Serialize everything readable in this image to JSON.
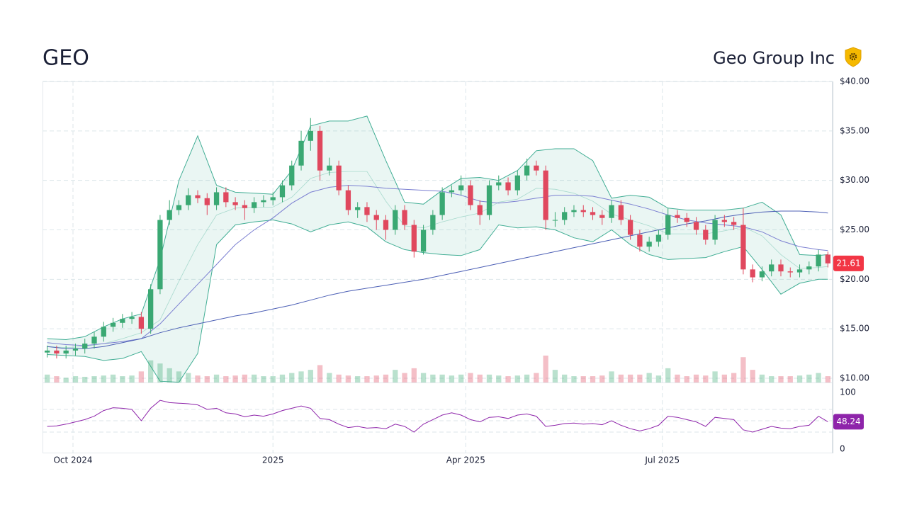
{
  "header": {
    "symbol": "GEO",
    "name": "Geo Group Inc"
  },
  "chart_data": [
    {
      "type": "candlestick",
      "x": [
        0,
        1,
        2,
        3,
        4,
        5,
        6,
        7,
        8,
        9,
        10,
        11,
        12,
        13,
        14,
        15,
        16,
        17,
        18,
        19,
        20,
        21,
        22,
        23,
        24,
        25,
        26,
        27,
        28,
        29,
        30,
        31,
        32,
        33,
        34,
        35,
        36,
        37,
        38,
        39,
        40,
        41,
        42,
        43,
        44,
        45,
        46,
        47,
        48,
        49,
        50,
        51,
        52,
        53,
        54,
        55,
        56,
        57,
        58,
        59,
        60,
        61,
        62,
        63,
        64,
        65,
        66,
        67,
        68,
        69,
        70,
        71,
        72,
        73,
        74,
        75,
        76,
        77,
        78,
        79,
        80,
        81,
        82,
        83
      ],
      "open": [
        12.6,
        12.8,
        12.5,
        12.8,
        13.0,
        13.5,
        14.2,
        15.2,
        15.6,
        16.0,
        16.2,
        15.0,
        19.0,
        26.0,
        27.0,
        27.5,
        28.5,
        28.2,
        27.5,
        28.8,
        27.8,
        27.5,
        27.2,
        27.8,
        28.0,
        28.3,
        29.5,
        31.5,
        34.0,
        35.0,
        31.0,
        31.5,
        29.0,
        27.0,
        27.3,
        26.5,
        26.0,
        25.0,
        27.0,
        25.5,
        22.8,
        25.0,
        26.5,
        28.8,
        29.0,
        29.5,
        27.5,
        26.5,
        29.5,
        29.8,
        29.0,
        30.5,
        31.5,
        31.0,
        26.0,
        26.0,
        26.8,
        27.0,
        26.8,
        26.5,
        26.2,
        27.5,
        26.0,
        24.5,
        23.3,
        23.8,
        24.5,
        26.5,
        26.2,
        25.8,
        25.0,
        24.0,
        26.0,
        25.8,
        25.5,
        21.0,
        20.2,
        20.8,
        21.5,
        20.8,
        20.7,
        21.0,
        21.3,
        22.5
      ],
      "high": [
        13.3,
        13.3,
        13.3,
        13.5,
        14.0,
        14.7,
        15.7,
        16.1,
        16.5,
        16.7,
        16.7,
        19.5,
        26.5,
        28.0,
        28.0,
        29.2,
        29.0,
        28.7,
        29.3,
        29.3,
        28.3,
        28.0,
        28.3,
        28.5,
        28.8,
        30.0,
        32.0,
        35.0,
        36.3,
        35.5,
        32.3,
        32.0,
        29.5,
        27.8,
        27.8,
        27.0,
        26.5,
        27.5,
        27.5,
        26.0,
        25.5,
        27.0,
        29.3,
        29.5,
        30.5,
        30.0,
        28.0,
        30.0,
        30.5,
        30.3,
        31.0,
        32.2,
        32.0,
        31.5,
        26.8,
        27.3,
        27.5,
        27.5,
        27.3,
        27.0,
        28.0,
        28.0,
        26.5,
        25.0,
        24.3,
        25.0,
        27.2,
        27.0,
        26.7,
        26.3,
        25.5,
        26.5,
        26.5,
        26.3,
        27.2,
        21.5,
        21.3,
        22.0,
        22.0,
        21.2,
        21.5,
        21.8,
        23.0,
        22.8
      ],
      "low": [
        12.1,
        12.0,
        12.0,
        12.3,
        12.5,
        13.0,
        13.7,
        14.7,
        15.1,
        15.5,
        14.5,
        14.5,
        18.5,
        25.5,
        26.5,
        27.0,
        27.7,
        26.5,
        27.0,
        27.3,
        27.0,
        26.0,
        26.7,
        27.3,
        27.5,
        27.8,
        29.0,
        31.0,
        33.0,
        30.0,
        30.5,
        28.5,
        26.5,
        26.2,
        25.8,
        25.0,
        24.0,
        24.5,
        25.0,
        22.2,
        22.5,
        24.5,
        26.0,
        28.3,
        28.5,
        27.0,
        25.5,
        26.0,
        29.0,
        28.5,
        28.5,
        30.0,
        30.5,
        25.0,
        25.3,
        25.5,
        26.3,
        26.3,
        26.0,
        25.5,
        25.7,
        25.5,
        24.0,
        22.8,
        22.8,
        23.3,
        24.0,
        25.7,
        25.3,
        24.5,
        23.5,
        23.5,
        25.3,
        25.0,
        20.5,
        19.7,
        19.8,
        20.3,
        20.3,
        20.2,
        20.2,
        20.5,
        20.8,
        21.2
      ],
      "close": [
        12.8,
        12.5,
        12.8,
        13.0,
        13.5,
        14.2,
        15.2,
        15.6,
        16.0,
        16.2,
        15.0,
        19.0,
        26.0,
        27.0,
        27.5,
        28.5,
        28.2,
        27.5,
        28.8,
        27.8,
        27.5,
        27.2,
        27.8,
        28.0,
        28.3,
        29.5,
        31.5,
        34.0,
        35.0,
        31.0,
        31.5,
        29.0,
        27.0,
        27.3,
        26.5,
        26.0,
        25.0,
        27.0,
        25.5,
        22.8,
        25.0,
        26.5,
        28.8,
        29.0,
        29.5,
        27.5,
        26.5,
        29.5,
        29.8,
        29.0,
        30.5,
        31.5,
        31.0,
        26.0,
        26.0,
        26.8,
        27.0,
        26.8,
        26.5,
        26.2,
        27.5,
        26.0,
        24.5,
        23.3,
        23.8,
        24.5,
        26.5,
        26.2,
        25.8,
        25.0,
        24.0,
        26.0,
        25.8,
        25.5,
        21.0,
        20.2,
        20.8,
        21.5,
        20.8,
        20.7,
        21.0,
        21.3,
        22.5,
        21.61
      ],
      "volume": [
        2.5,
        2,
        1.5,
        2,
        1.8,
        2,
        2.2,
        2.5,
        2,
        2.2,
        3.5,
        7,
        6,
        4.5,
        3.5,
        3,
        2.2,
        2,
        2.5,
        2,
        2.2,
        2.5,
        2.5,
        2,
        2,
        2.5,
        3,
        3.5,
        4,
        5.5,
        3,
        2.5,
        2.2,
        2,
        2,
        2.2,
        2.5,
        4,
        3,
        4.5,
        3,
        2.5,
        2.5,
        2.2,
        2.5,
        3,
        2.5,
        2.5,
        2.2,
        2,
        2.2,
        2.5,
        3,
        8.5,
        4,
        2.5,
        2,
        2,
        2,
        2.2,
        3.5,
        2.5,
        2.5,
        2.5,
        3,
        2.2,
        4.5,
        2.5,
        2,
        2.5,
        2.2,
        3.5,
        2.5,
        3,
        8,
        4,
        2.5,
        2,
        2,
        2,
        2.2,
        2.5,
        3,
        2
      ],
      "up_color": "#3aa873",
      "down_color": "#e0485e",
      "badge_color": "#f23645",
      "xlim": [
        -0.5,
        83.5
      ],
      "xticks": [
        {
          "value": 2.74,
          "label": "Oct 2024"
        },
        {
          "value": 24,
          "label": "2025"
        },
        {
          "value": 44.5,
          "label": "Apr 2025"
        },
        {
          "value": 65.4,
          "label": "Jul 2025"
        }
      ],
      "ylim": [
        9.57,
        40
      ],
      "yticks": [
        {
          "value": 10,
          "label": "$10.00"
        },
        {
          "value": 15,
          "label": "$15.00"
        },
        {
          "value": 20,
          "label": "$20.00"
        },
        {
          "value": 25,
          "label": "$25.00"
        },
        {
          "value": 30,
          "label": "$30.00"
        },
        {
          "value": 35,
          "label": "$35.00"
        },
        {
          "value": 40,
          "label": "$40.00"
        }
      ],
      "grid": true,
      "overlay_x": [
        0,
        2,
        4,
        6,
        8,
        10,
        12,
        14,
        16,
        18,
        20,
        22,
        24,
        26,
        28,
        30,
        32,
        34,
        36,
        38,
        40,
        42,
        44,
        46,
        48,
        50,
        52,
        54,
        56,
        58,
        60,
        62,
        64,
        66,
        68,
        70,
        72,
        74,
        76,
        78,
        80,
        82,
        83
      ],
      "bands": {
        "color": "#2ea58a",
        "upper": [
          14.0,
          13.9,
          14.2,
          15.2,
          16.0,
          16.5,
          22,
          30,
          34.5,
          29.5,
          28.8,
          28.7,
          28.6,
          31,
          35.5,
          36,
          36,
          36.5,
          32,
          27.8,
          27.6,
          29,
          30.2,
          30.3,
          30,
          31,
          33,
          33.2,
          33.2,
          32,
          28.2,
          28.5,
          28.3,
          27.2,
          27,
          27,
          27,
          27.2,
          27.8,
          26.5,
          22.5,
          22.4,
          22.5
        ],
        "middle": [
          13.2,
          13.1,
          13.2,
          13.5,
          14.0,
          14.6,
          15.9,
          19.8,
          23.5,
          26.5,
          27.2,
          27.3,
          27.3,
          28.3,
          30.2,
          30.8,
          30.9,
          30.9,
          27.9,
          25.4,
          25.2,
          25.8,
          26.3,
          26.7,
          27.8,
          28.1,
          29.2,
          29.1,
          28.7,
          27.9,
          26.6,
          26.0,
          25.4,
          24.6,
          24.6,
          24.6,
          24.9,
          25.3,
          24.4,
          22.5,
          21.1,
          21.2,
          21.3
        ],
        "lower": [
          12.4,
          12.3,
          12.2,
          11.8,
          12.0,
          12.7,
          9.7,
          9.6,
          12.5,
          23.5,
          25.5,
          25.8,
          26.0,
          25.6,
          24.8,
          25.5,
          25.8,
          25.3,
          23.8,
          23.0,
          22.7,
          22.5,
          22.4,
          23.0,
          25.5,
          25.2,
          25.3,
          25.0,
          24.2,
          23.8,
          25.0,
          23.5,
          22.5,
          22.0,
          22.1,
          22.2,
          22.8,
          23.3,
          21.0,
          18.5,
          19.6,
          20.0,
          20.0
        ]
      },
      "lines": [
        {
          "color": "#7b7fd1",
          "values": [
            13.6,
            13.4,
            13.3,
            13.5,
            13.7,
            14.0,
            15.5,
            17.5,
            19.5,
            21.5,
            23.5,
            25,
            26.2,
            27.7,
            28.8,
            29.3,
            29.5,
            29.4,
            29.2,
            29.1,
            29,
            28.9,
            28.5,
            27.9,
            27.7,
            27.9,
            28.2,
            28.5,
            28.5,
            28.4,
            28,
            27.6,
            27.1,
            26.5,
            26.0,
            25.7,
            25.5,
            25.3,
            24.8,
            23.9,
            23.3,
            23.0,
            22.9
          ]
        },
        {
          "color": "#4c5fb5",
          "values": [
            13.2,
            13.0,
            13.0,
            13.2,
            13.6,
            14.0,
            14.6,
            15.1,
            15.5,
            15.9,
            16.3,
            16.6,
            17.0,
            17.4,
            17.9,
            18.4,
            18.8,
            19.1,
            19.4,
            19.7,
            20.0,
            20.4,
            20.8,
            21.2,
            21.6,
            22.0,
            22.4,
            22.8,
            23.2,
            23.6,
            24.0,
            24.4,
            24.8,
            25.2,
            25.6,
            25.9,
            26.3,
            26.6,
            26.8,
            26.9,
            26.9,
            26.8,
            26.7
          ]
        }
      ]
    },
    {
      "type": "line",
      "values": [
        40,
        41,
        44,
        48,
        52,
        58,
        68,
        73,
        72,
        70,
        50,
        72,
        86,
        82,
        81,
        80,
        78,
        70,
        72,
        64,
        62,
        57,
        60,
        58,
        62,
        68,
        72,
        76,
        72,
        54,
        52,
        44,
        38,
        40,
        37,
        38,
        36,
        44,
        40,
        30,
        44,
        52,
        60,
        64,
        60,
        52,
        48,
        56,
        57,
        54,
        60,
        62,
        58,
        40,
        42,
        45,
        46,
        44,
        45,
        43,
        50,
        42,
        36,
        32,
        36,
        42,
        58,
        56,
        52,
        48,
        40,
        56,
        54,
        52,
        34,
        30,
        35,
        40,
        37,
        36,
        40,
        42,
        58,
        48.24
      ],
      "color": "#8e24aa",
      "ylim": [
        -7.5,
        117.5
      ],
      "yticks": [
        0,
        100
      ],
      "guides": [
        30,
        50,
        70
      ]
    }
  ]
}
